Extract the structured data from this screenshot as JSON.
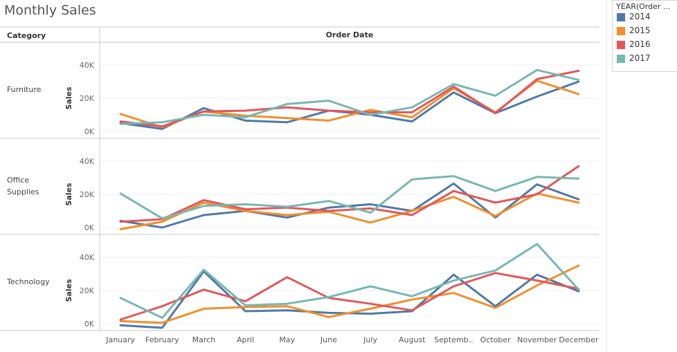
{
  "title": "Monthly Sales",
  "legend": {
    "title": "YEAR(Order ...",
    "items": [
      {
        "label": "2014",
        "color": "#4e79a7"
      },
      {
        "label": "2015",
        "color": "#f28e2b"
      },
      {
        "label": "2016",
        "color": "#e15759"
      },
      {
        "label": "2017",
        "color": "#76b7b2"
      }
    ]
  },
  "chart_data": {
    "type": "line",
    "row_header": "Category",
    "column_header": "Order Date",
    "ylabel": "Sales",
    "ylim": [
      0,
      45000
    ],
    "yticks": [
      0,
      20000,
      40000
    ],
    "ytick_labels": [
      "0K",
      "20K",
      "40K"
    ],
    "categories": [
      "January",
      "February",
      "March",
      "April",
      "May",
      "June",
      "July",
      "August",
      "Septemb..",
      "October",
      "November",
      "December"
    ],
    "panels": [
      {
        "category": "Furniture",
        "series": [
          {
            "name": "2014",
            "values": [
              5000,
              1500,
              14000,
              6500,
              5500,
              12500,
              10000,
              6000,
              23500,
              11000,
              21000,
              30000
            ]
          },
          {
            "name": "2015",
            "values": [
              10500,
              2500,
              12000,
              9500,
              8000,
              6500,
              13000,
              8500,
              26000,
              11500,
              30500,
              22500
            ]
          },
          {
            "name": "2016",
            "values": [
              6000,
              3000,
              12000,
              12500,
              14500,
              12500,
              11500,
              11500,
              27000,
              11000,
              31500,
              36500
            ]
          },
          {
            "name": "2017",
            "values": [
              4500,
              5500,
              10000,
              8500,
              16500,
              18500,
              10000,
              14500,
              28500,
              21500,
              37000,
              31000
            ]
          }
        ]
      },
      {
        "category": "Office Supplies",
        "series": [
          {
            "name": "2014",
            "values": [
              4000,
              0,
              7500,
              10000,
              6000,
              12000,
              14000,
              10000,
              26500,
              6000,
              26000,
              17000
            ]
          },
          {
            "name": "2015",
            "values": [
              -1000,
              3500,
              15000,
              10000,
              7500,
              9500,
              3000,
              10000,
              18500,
              7000,
              20500,
              15000
            ]
          },
          {
            "name": "2016",
            "values": [
              3500,
              5000,
              16500,
              11000,
              12000,
              10000,
              11500,
              7500,
              22000,
              15000,
              20000,
              37000
            ]
          },
          {
            "name": "2017",
            "values": [
              20500,
              5500,
              13000,
              14000,
              12500,
              16000,
              9000,
              29000,
              31000,
              22000,
              30500,
              29500
            ]
          }
        ]
      },
      {
        "category": "Technology",
        "series": [
          {
            "name": "2014",
            "values": [
              -1000,
              -2500,
              31500,
              7500,
              8000,
              6500,
              6000,
              7500,
              29500,
              10500,
              29500,
              19500
            ]
          },
          {
            "name": "2015",
            "values": [
              1500,
              500,
              9000,
              10000,
              10500,
              4000,
              9000,
              14500,
              18500,
              9500,
              23000,
              35000
            ]
          },
          {
            "name": "2016",
            "values": [
              2500,
              10500,
              20500,
              13500,
              28000,
              15500,
              12000,
              8000,
              22500,
              30500,
              26000,
              21000
            ]
          },
          {
            "name": "2017",
            "values": [
              15500,
              3500,
              32500,
              11000,
              12000,
              16000,
              22500,
              16500,
              26000,
              32000,
              48000,
              20500
            ]
          }
        ]
      }
    ]
  }
}
